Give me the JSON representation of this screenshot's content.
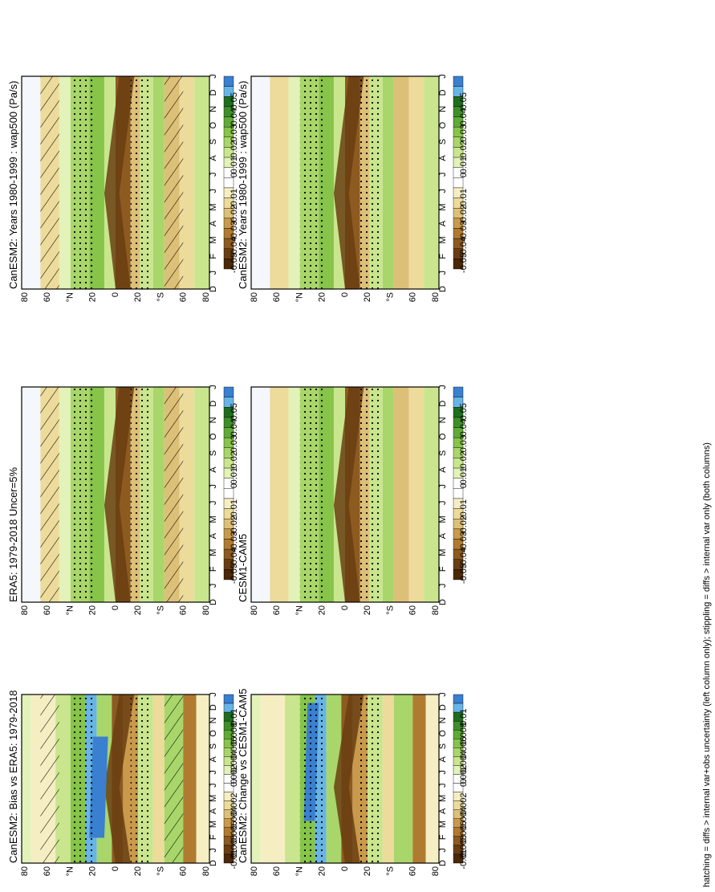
{
  "figure": {
    "footnote": "hatching = diffs > internal var+obs uncertainty (left column only); stippling = diffs > internal var only (both columns)"
  },
  "axes": {
    "months": [
      "D",
      "J",
      "F",
      "M",
      "A",
      "M",
      "J",
      "J",
      "A",
      "S",
      "O",
      "N",
      "D",
      "J"
    ],
    "lat_ticks": [
      "80",
      "60",
      "°N",
      "20",
      "0",
      "20",
      "°S",
      "60",
      "80"
    ]
  },
  "colorbars": {
    "main": [
      "0.05",
      "0.04",
      "0.03",
      "0.02",
      "0.01",
      "0",
      "-0.01",
      "-0.02",
      "-0.03",
      "-0.04",
      "-0.05"
    ],
    "diff": [
      "0.01",
      "0.008",
      "0.006",
      "0.004",
      "0.002",
      "0",
      "-0.002",
      "-0.004",
      "-0.006",
      "-0.008",
      "-0.01"
    ],
    "colors": [
      "#3a7fd0",
      "#67b5e6",
      "#1f6e1f",
      "#3e8f2a",
      "#5fab36",
      "#86c44a",
      "#a9d66a",
      "#c9e68e",
      "#e2f2b8",
      "#ffffff",
      "#ffffff",
      "#f6eec3",
      "#ecdb9a",
      "#ddc078",
      "#c99a4c",
      "#b07b30",
      "#8d5a20",
      "#6a3e12",
      "#4a2808"
    ]
  },
  "panels": [
    {
      "id": "left-top",
      "title": "CanESM2: Years 1980-1999 : wap500 (Pa/s)",
      "colorbar": "main",
      "hatch": true,
      "stipple": true
    },
    {
      "id": "right-top",
      "title": "CanESM2: Years 1980-1999 : wap500 (Pa/s)",
      "colorbar": "main",
      "hatch": false,
      "stipple": true
    },
    {
      "id": "left-mid",
      "title": "ERA5: 1979-2018 Uncer=5%",
      "colorbar": "main",
      "hatch": true,
      "stipple": true
    },
    {
      "id": "right-mid",
      "title": "CESM1-CAM5",
      "colorbar": "main",
      "hatch": false,
      "stipple": true
    },
    {
      "id": "left-bot",
      "title": "CanESM2: Bias vs ERA5: 1979-2018",
      "colorbar": "diff",
      "hatch": true,
      "stipple": true
    },
    {
      "id": "right-bot",
      "title": "CanESM2: Change vs CESM1-CAM5",
      "colorbar": "diff",
      "hatch": false,
      "stipple": true
    }
  ],
  "chart_data": [
    {
      "type": "heatmap",
      "title": "CanESM2: Years 1980-1999 : wap500 (Pa/s)",
      "x": [
        "D",
        "J",
        "F",
        "M",
        "A",
        "M",
        "J",
        "J",
        "A",
        "S",
        "O",
        "N",
        "D",
        "J"
      ],
      "y": [
        "80",
        "60",
        "°N",
        "20",
        "0",
        "20",
        "°S",
        "60",
        "80"
      ],
      "colorbar": [
        0.05,
        0.04,
        0.03,
        0.02,
        0.01,
        0,
        -0.01,
        -0.02,
        -0.03,
        -0.04,
        -0.05
      ]
    },
    {
      "type": "heatmap",
      "title": "CanESM2: Years 1980-1999 : wap500 (Pa/s)",
      "x": [
        "D",
        "J",
        "F",
        "M",
        "A",
        "M",
        "J",
        "J",
        "A",
        "S",
        "O",
        "N",
        "D",
        "J"
      ],
      "y": [
        "80",
        "60",
        "°N",
        "20",
        "0",
        "20",
        "°S",
        "60",
        "80"
      ],
      "colorbar": [
        0.05,
        0.04,
        0.03,
        0.02,
        0.01,
        0,
        -0.01,
        -0.02,
        -0.03,
        -0.04,
        -0.05
      ]
    },
    {
      "type": "heatmap",
      "title": "ERA5: 1979-2018 Uncer=5%",
      "x": [
        "D",
        "J",
        "F",
        "M",
        "A",
        "M",
        "J",
        "J",
        "A",
        "S",
        "O",
        "N",
        "D",
        "J"
      ],
      "y": [
        "80",
        "60",
        "°N",
        "20",
        "0",
        "20",
        "°S",
        "60",
        "80"
      ],
      "colorbar": [
        0.05,
        0.04,
        0.03,
        0.02,
        0.01,
        0,
        -0.01,
        -0.02,
        -0.03,
        -0.04,
        -0.05
      ]
    },
    {
      "type": "heatmap",
      "title": "CESM1-CAM5",
      "x": [
        "D",
        "J",
        "F",
        "M",
        "A",
        "M",
        "J",
        "J",
        "A",
        "S",
        "O",
        "N",
        "D",
        "J"
      ],
      "y": [
        "80",
        "60",
        "°N",
        "20",
        "0",
        "20",
        "°S",
        "60",
        "80"
      ],
      "colorbar": [
        0.05,
        0.04,
        0.03,
        0.02,
        0.01,
        0,
        -0.01,
        -0.02,
        -0.03,
        -0.04,
        -0.05
      ]
    },
    {
      "type": "heatmap",
      "title": "CanESM2: Bias vs ERA5: 1979-2018",
      "x": [
        "D",
        "J",
        "F",
        "M",
        "A",
        "M",
        "J",
        "J",
        "A",
        "S",
        "O",
        "N",
        "D",
        "J"
      ],
      "y": [
        "80",
        "60",
        "°N",
        "20",
        "0",
        "20",
        "°S",
        "60",
        "80"
      ],
      "colorbar": [
        0.01,
        0.008,
        0.006,
        0.004,
        0.002,
        0,
        -0.002,
        -0.004,
        -0.006,
        -0.008,
        -0.01
      ]
    },
    {
      "type": "heatmap",
      "title": "CanESM2: Change vs CESM1-CAM5",
      "x": [
        "D",
        "J",
        "F",
        "M",
        "A",
        "M",
        "J",
        "J",
        "A",
        "S",
        "O",
        "N",
        "D",
        "J"
      ],
      "y": [
        "80",
        "60",
        "°N",
        "20",
        "0",
        "20",
        "°S",
        "60",
        "80"
      ],
      "colorbar": [
        0.01,
        0.008,
        0.006,
        0.004,
        0.002,
        0,
        -0.002,
        -0.004,
        -0.006,
        -0.008,
        -0.01
      ]
    }
  ]
}
